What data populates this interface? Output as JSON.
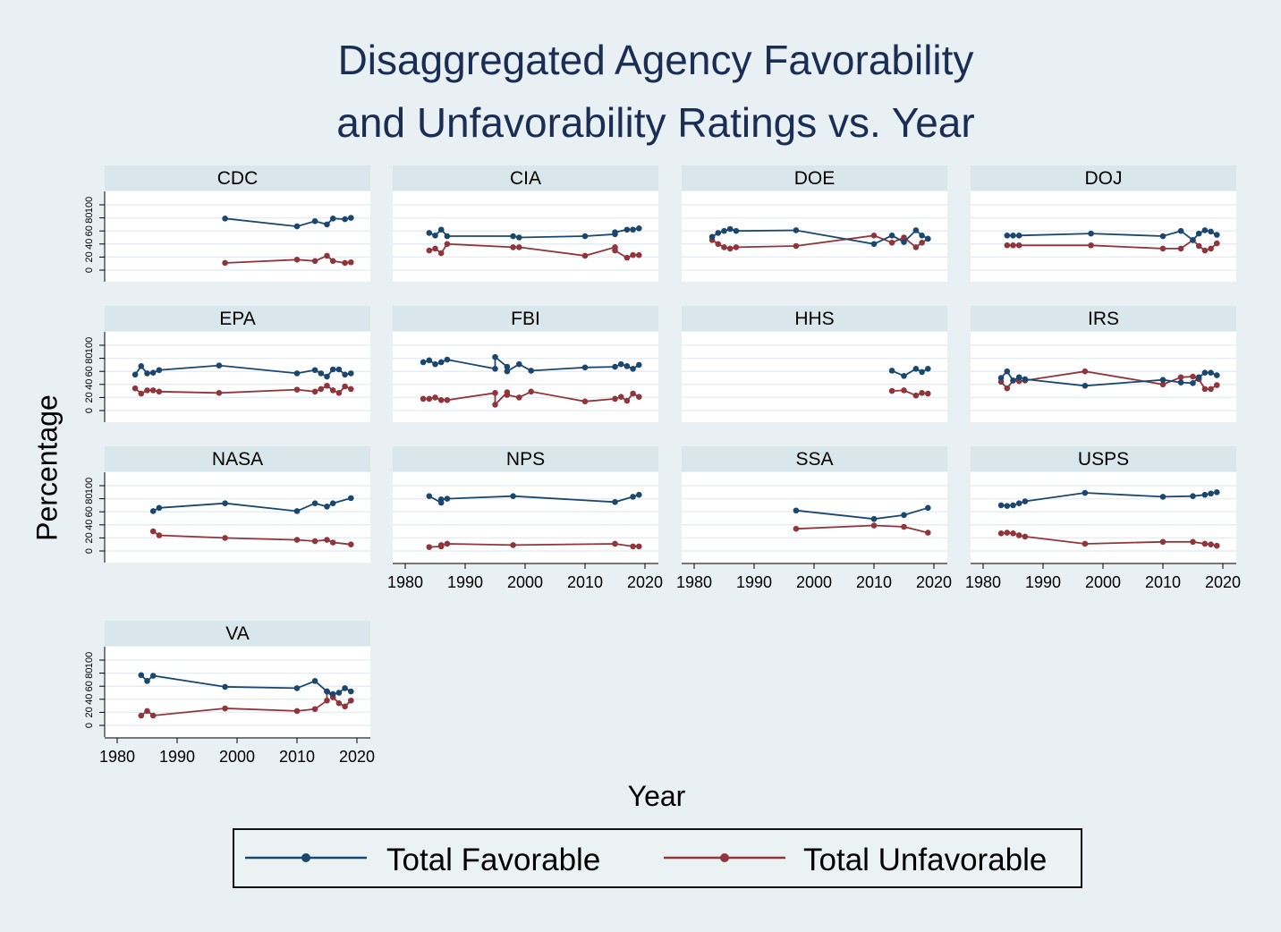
{
  "chart_data": {
    "type": "line",
    "title": [
      "Disaggregated Agency Favorability",
      "and Unfavorability Ratings vs. Year"
    ],
    "xlabel": "Year",
    "ylabel": "Percentage",
    "xlim": [
      1978,
      2022
    ],
    "ylim": [
      -18,
      120
    ],
    "xticks": [
      "1980",
      "1990",
      "2000",
      "2010",
      "2020"
    ],
    "yticks": [
      "0",
      "20",
      "40",
      "60",
      "80",
      "100"
    ],
    "grid": true,
    "legend": {
      "position": "bottom",
      "entries": [
        "Total Favorable",
        "Total Unfavorable"
      ]
    },
    "colors": {
      "favorable": "#1a476f",
      "unfavorable": "#90353b"
    },
    "panels": [
      {
        "name": "CDC",
        "x": [
          1998,
          2010,
          2013,
          2015,
          2016,
          2018,
          2019
        ],
        "favorable": [
          79,
          67,
          75,
          70,
          79,
          78,
          80
        ],
        "unfavorable": [
          11,
          16,
          14,
          22,
          14,
          11,
          12
        ]
      },
      {
        "name": "CIA",
        "x": [
          1984,
          1985,
          1986,
          1987,
          1998,
          1999,
          2010,
          2015,
          2015,
          2017,
          2018,
          2019
        ],
        "favorable": [
          57,
          53,
          62,
          52,
          52,
          50,
          52,
          55,
          58,
          62,
          62,
          64
        ],
        "unfavorable": [
          30,
          33,
          26,
          40,
          35,
          35,
          22,
          35,
          30,
          19,
          23,
          23
        ]
      },
      {
        "name": "DOE",
        "x": [
          1983,
          1984,
          1985,
          1986,
          1987,
          1997,
          2010,
          2013,
          2015,
          2017,
          2018,
          2019
        ],
        "favorable": [
          51,
          57,
          60,
          63,
          60,
          61,
          40,
          53,
          43,
          61,
          53,
          48
        ],
        "unfavorable": [
          46,
          40,
          35,
          33,
          35,
          37,
          53,
          42,
          50,
          35,
          42,
          48
        ]
      },
      {
        "name": "DOJ",
        "x": [
          1984,
          1985,
          1986,
          1998,
          2010,
          2013,
          2015,
          2016,
          2017,
          2018,
          2019
        ],
        "favorable": [
          53,
          53,
          53,
          56,
          52,
          60,
          46,
          56,
          61,
          59,
          54
        ],
        "unfavorable": [
          38,
          38,
          38,
          38,
          33,
          33,
          46,
          37,
          30,
          33,
          41
        ]
      },
      {
        "name": "EPA",
        "x": [
          1983,
          1984,
          1985,
          1986,
          1987,
          1997,
          2010,
          2013,
          2014,
          2015,
          2016,
          2017,
          2018,
          2019
        ],
        "favorable": [
          55,
          68,
          57,
          58,
          62,
          69,
          57,
          62,
          57,
          52,
          63,
          63,
          55,
          57
        ],
        "unfavorable": [
          34,
          26,
          31,
          31,
          29,
          27,
          32,
          29,
          33,
          38,
          31,
          27,
          37,
          33
        ]
      },
      {
        "name": "FBI",
        "x": [
          1983,
          1984,
          1985,
          1986,
          1987,
          1995,
          1995,
          1997,
          1997,
          1999,
          2001,
          2010,
          2015,
          2016,
          2017,
          2018,
          2019
        ],
        "favorable": [
          74,
          77,
          71,
          74,
          78,
          64,
          82,
          67,
          60,
          71,
          61,
          66,
          67,
          71,
          68,
          64,
          70
        ],
        "unfavorable": [
          18,
          18,
          20,
          16,
          16,
          27,
          9,
          28,
          24,
          20,
          29,
          14,
          18,
          21,
          15,
          26,
          21
        ]
      },
      {
        "name": "HHS",
        "x": [
          2013,
          2015,
          2017,
          2018,
          2019
        ],
        "favorable": [
          61,
          53,
          64,
          59,
          64
        ],
        "unfavorable": [
          30,
          31,
          23,
          27,
          26
        ]
      },
      {
        "name": "IRS",
        "x": [
          1983,
          1984,
          1985,
          1986,
          1987,
          1997,
          2010,
          2013,
          2015,
          2016,
          2017,
          2018,
          2019
        ],
        "favorable": [
          50,
          60,
          46,
          51,
          48,
          38,
          47,
          43,
          42,
          51,
          58,
          58,
          54
        ],
        "unfavorable": [
          44,
          34,
          46,
          45,
          46,
          60,
          40,
          51,
          52,
          48,
          33,
          33,
          39
        ]
      },
      {
        "name": "NASA",
        "x": [
          1986,
          1987,
          1998,
          2010,
          2013,
          2015,
          2016,
          2019
        ],
        "favorable": [
          61,
          66,
          73,
          61,
          73,
          68,
          73,
          81
        ],
        "unfavorable": [
          30,
          24,
          20,
          17,
          15,
          17,
          13,
          10
        ]
      },
      {
        "name": "NPS",
        "x": [
          1984,
          1986,
          1986,
          1987,
          1998,
          2015,
          2018,
          2019
        ],
        "favorable": [
          84,
          74,
          79,
          80,
          84,
          75,
          83,
          86
        ],
        "unfavorable": [
          6,
          7,
          9,
          11,
          9,
          11,
          7,
          7
        ]
      },
      {
        "name": "SSA",
        "x": [
          1997,
          2010,
          2015,
          2019
        ],
        "favorable": [
          62,
          49,
          55,
          66
        ],
        "unfavorable": [
          34,
          39,
          37,
          28
        ]
      },
      {
        "name": "USPS",
        "x": [
          1983,
          1984,
          1985,
          1986,
          1987,
          1997,
          2010,
          2015,
          2017,
          2018,
          2019
        ],
        "favorable": [
          70,
          69,
          70,
          73,
          76,
          89,
          83,
          84,
          86,
          88,
          90
        ],
        "unfavorable": [
          27,
          28,
          27,
          24,
          22,
          11,
          14,
          14,
          11,
          10,
          8
        ]
      },
      {
        "name": "VA",
        "x": [
          1984,
          1985,
          1986,
          1998,
          2010,
          2013,
          2015,
          2015,
          2016,
          2017,
          2018,
          2019
        ],
        "favorable": [
          77,
          68,
          76,
          59,
          57,
          68,
          52,
          52,
          48,
          50,
          57,
          52
        ],
        "unfavorable": [
          15,
          22,
          15,
          26,
          22,
          25,
          38,
          52,
          43,
          34,
          29,
          38
        ]
      }
    ]
  }
}
